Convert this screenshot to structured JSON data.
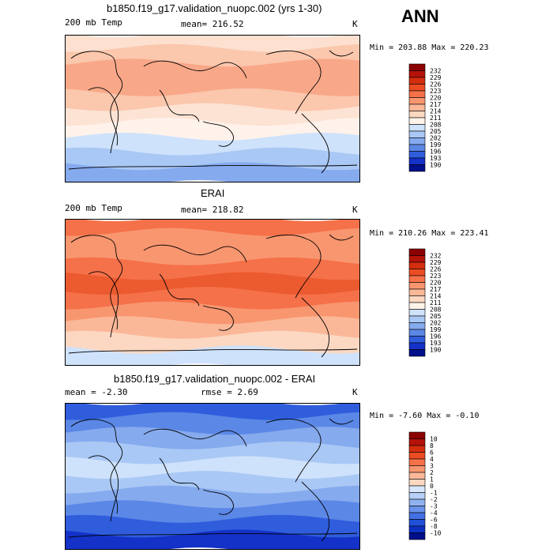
{
  "season": "ANN",
  "panels": [
    {
      "title": "b1850.f19_g17.validation_nuopc.002 (yrs 1-30)",
      "variable": "200 mb Temp",
      "mean_text": "mean= 216.52",
      "units": "K",
      "minmax": "Min = 203.88 Max = 220.23"
    },
    {
      "title": "ERAI",
      "variable": "200 mb Temp",
      "mean_text": "mean= 218.82",
      "units": "K",
      "minmax": "Min = 210.26 Max = 223.41"
    },
    {
      "title": "b1850.f19_g17.validation_nuopc.002 - ERAI",
      "mean_text": "mean =   -2.30",
      "rmse_text": "rmse =    2.69",
      "units": "K",
      "minmax": "Min =  -7.60 Max =  -0.10"
    }
  ],
  "colorbar_abs": {
    "labels": [
      "232",
      "229",
      "226",
      "223",
      "220",
      "217",
      "214",
      "211",
      "208",
      "205",
      "202",
      "199",
      "196",
      "193",
      "190"
    ],
    "colors": [
      "#8b0000",
      "#b5120a",
      "#d42e0e",
      "#ec4c23",
      "#f5714a",
      "#f8966f",
      "#fbb899",
      "#fcd8c2",
      "#fff3ea",
      "#cfe2fb",
      "#a9c8f5",
      "#86aaee",
      "#5b87e6",
      "#2f5ddc",
      "#1432c8",
      "#000f8a"
    ]
  },
  "colorbar_diff": {
    "labels": [
      "10",
      "8",
      "6",
      "4",
      "3",
      "2",
      "1",
      "0",
      "-1",
      "-2",
      "-3",
      "-4",
      "-6",
      "-8",
      "-10"
    ],
    "colors": [
      "#8b0000",
      "#b5120a",
      "#d42e0e",
      "#ec4c23",
      "#f5714a",
      "#f8966f",
      "#fbb899",
      "#fcd8c2",
      "#d8e6fb",
      "#b6d0f7",
      "#8fb2f0",
      "#6a92ea",
      "#4370e2",
      "#2150d8",
      "#0d30c4",
      "#000f8a"
    ]
  },
  "map_colors": {
    "m1": [
      "#fde0cf",
      "#fbc7ad",
      "#f8a888",
      "#f8a888",
      "#fbc7ad",
      "#fde3d4",
      "#fff2ea",
      "#cfe2fb",
      "#a9c8f5",
      "#86aaee"
    ],
    "m2": [
      "#f5714a",
      "#f8966f",
      "#f8966f",
      "#f5714a",
      "#ec5a2f",
      "#f5714a",
      "#f8966f",
      "#fbb899",
      "#fcd8c2",
      "#cfe2fb"
    ],
    "m3": [
      "#2f5ddc",
      "#5b87e6",
      "#86aaee",
      "#a9c8f5",
      "#cfe2fb",
      "#a9c8f5",
      "#86aaee",
      "#5b87e6",
      "#2f5ddc",
      "#1432c8"
    ]
  }
}
